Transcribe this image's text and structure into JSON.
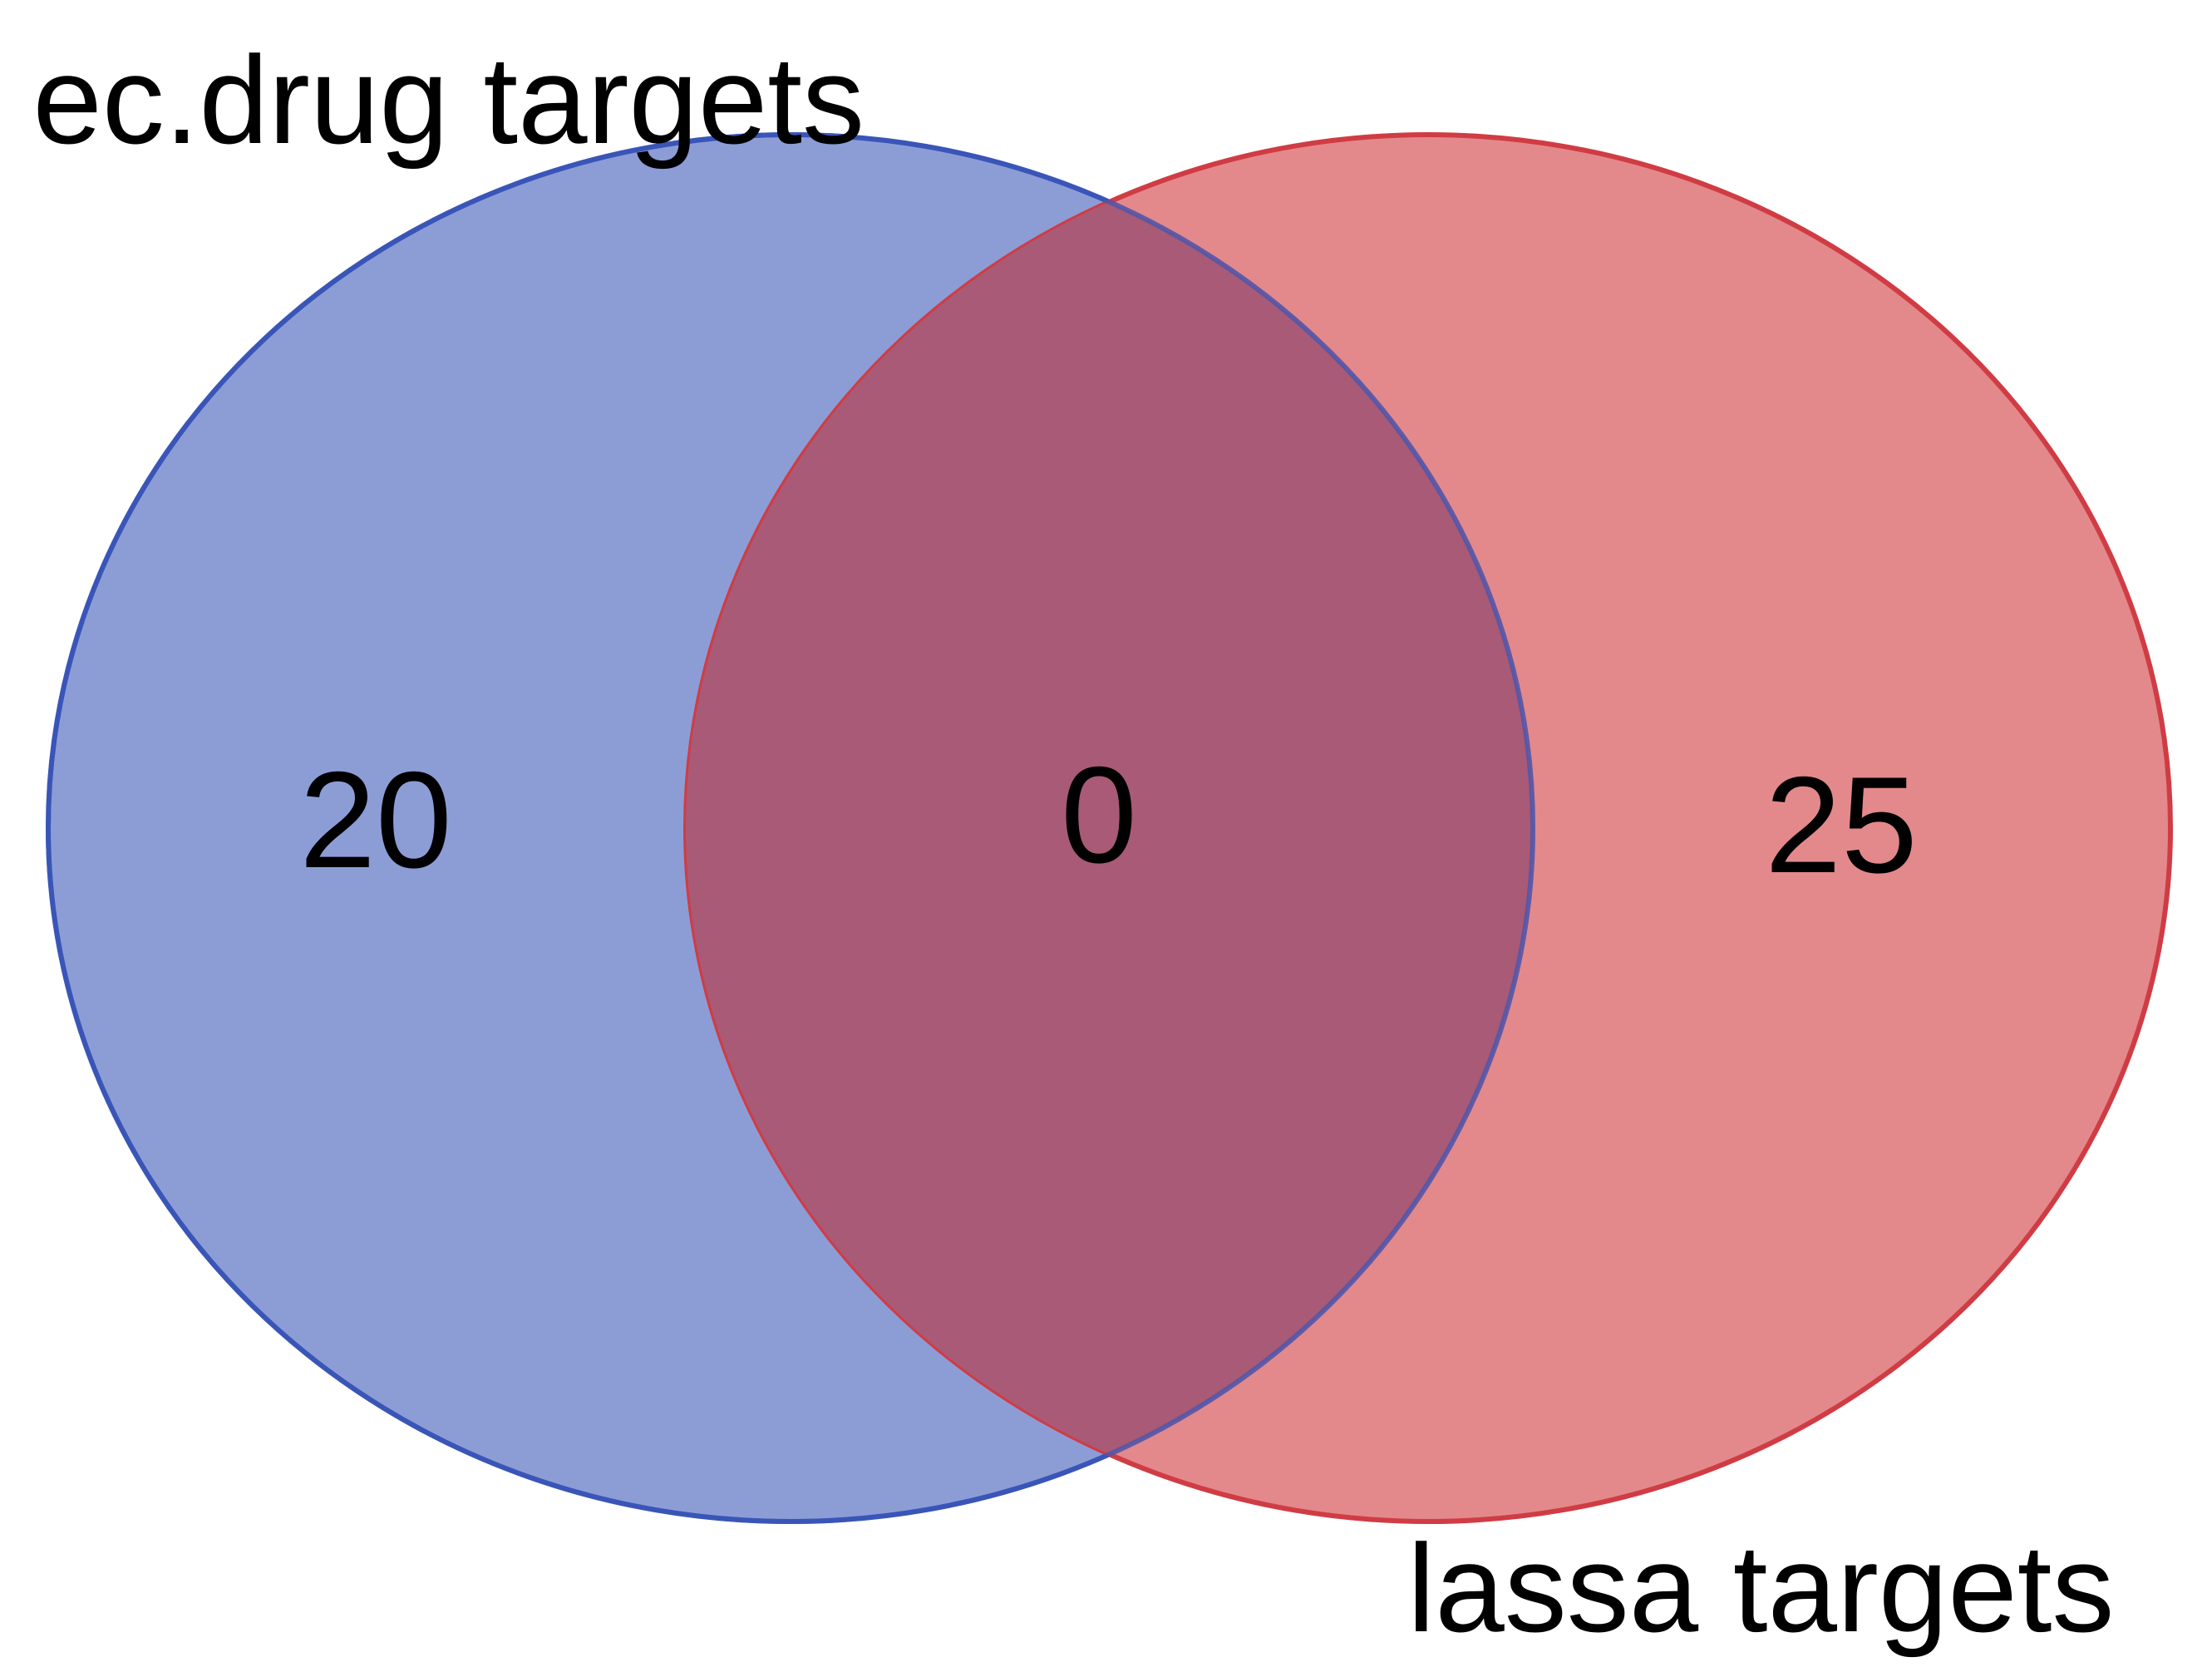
{
  "venn": {
    "sets": [
      {
        "name": "ec.drug targets",
        "fill": "#6f84cc",
        "stroke": "#3a55b8"
      },
      {
        "name": "lassa targets",
        "fill": "#dc6c6e",
        "stroke": "#d03c44"
      }
    ],
    "counts": {
      "left_only": "20",
      "overlap": "0",
      "right_only": "25"
    },
    "overlap_fill": "#a85a76"
  }
}
